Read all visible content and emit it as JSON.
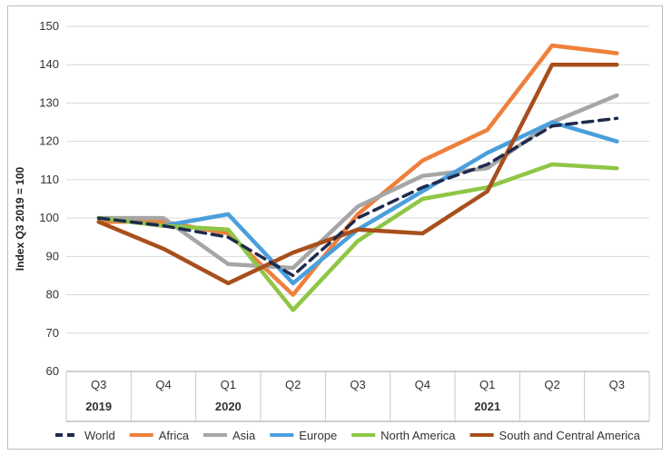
{
  "chart_data": {
    "type": "line",
    "ylabel": "Index Q3 2019 = 100",
    "xlabel": "",
    "ylim": [
      60,
      150
    ],
    "yticks": [
      60,
      70,
      80,
      90,
      100,
      110,
      120,
      130,
      140,
      150
    ],
    "grid": "horizontal",
    "legend_position": "bottom",
    "categories": [
      "Q3",
      "Q4",
      "Q1",
      "Q2",
      "Q3",
      "Q4",
      "Q1",
      "Q2",
      "Q3"
    ],
    "year_labels": [
      {
        "index": 0,
        "label": "2019"
      },
      {
        "index": 2,
        "label": "2020"
      },
      {
        "index": 6,
        "label": "2021"
      }
    ],
    "series": [
      {
        "name": "World",
        "color": "#1f2a4d",
        "dash": true,
        "values": [
          100,
          98,
          95,
          85,
          100,
          108,
          114,
          124,
          126
        ]
      },
      {
        "name": "Africa",
        "color": "#ef7f3a",
        "values": [
          99,
          99,
          96,
          80,
          101,
          115,
          123,
          145,
          143
        ]
      },
      {
        "name": "Asia",
        "color": "#a6a6a6",
        "values": [
          100,
          100,
          88,
          87,
          103,
          111,
          113,
          125,
          132
        ]
      },
      {
        "name": "Europe",
        "color": "#4a9fdc",
        "values": [
          100,
          98,
          101,
          83,
          97,
          107,
          117,
          125,
          120
        ]
      },
      {
        "name": "North America",
        "color": "#8fc645",
        "values": [
          100,
          98,
          97,
          76,
          94,
          105,
          108,
          114,
          113
        ]
      },
      {
        "name": "South and Central America",
        "color": "#a84f1c",
        "values": [
          99,
          92,
          83,
          91,
          97,
          96,
          107,
          140,
          140
        ]
      }
    ]
  }
}
